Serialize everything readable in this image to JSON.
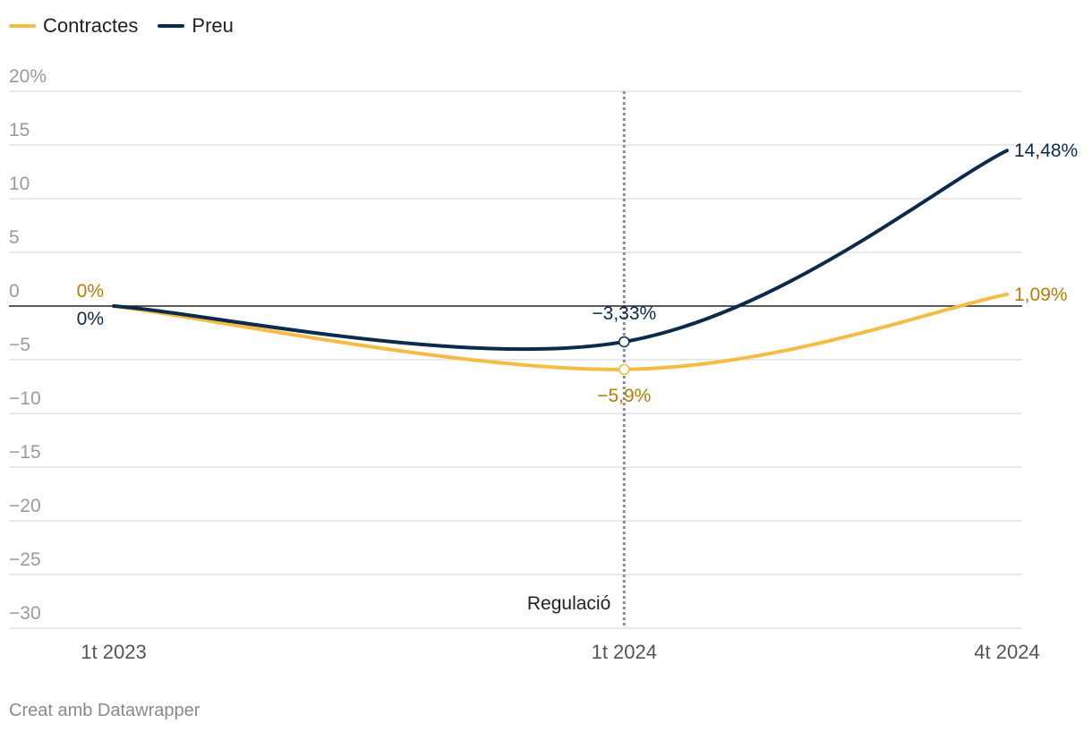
{
  "colors": {
    "contractes": "#f6bb44",
    "contractes_label": "#b27e07",
    "preu": "#0b2b4c",
    "grid": "#e3e3e3",
    "zero_line": "#222222",
    "tick_label": "#9a9a9a",
    "annotation_line": "#8c8c8c"
  },
  "legend": [
    {
      "name": "Contractes",
      "color": "#f6bb44"
    },
    {
      "name": "Preu",
      "color": "#0b2b4c"
    }
  ],
  "footer": "Creat amb Datawrapper",
  "chart_data": {
    "type": "line",
    "title": "",
    "xlabel": "",
    "ylabel": "",
    "x": [
      0,
      4,
      7
    ],
    "x_tick_labels": [
      {
        "x": 0,
        "label": "1t 2023"
      },
      {
        "x": 4,
        "label": "1t 2024"
      },
      {
        "x": 7,
        "label": "4t 2024"
      }
    ],
    "xlim": [
      0,
      7
    ],
    "ylim": [
      -30,
      20
    ],
    "y_ticks": [
      20,
      15,
      10,
      5,
      0,
      -5,
      -10,
      -15,
      -20,
      -25,
      -30
    ],
    "y_tick_labels": [
      "20%",
      "15",
      "10",
      "5",
      "0",
      "−5",
      "−10",
      "−15",
      "−20",
      "−25",
      "−30"
    ],
    "grid": true,
    "legend_position": "top-left",
    "series": [
      {
        "name": "Contractes",
        "color": "#f6bb44",
        "values": [
          0,
          -5.9,
          1.09
        ],
        "labels": [
          "0%",
          "−5,9%",
          "1,09%"
        ]
      },
      {
        "name": "Preu",
        "color": "#0b2b4c",
        "values": [
          0,
          -3.33,
          14.48
        ],
        "labels": [
          "0%",
          "−3,33%",
          "14,48%"
        ]
      }
    ],
    "annotations": [
      {
        "x": 4,
        "text": "Regulació"
      }
    ]
  }
}
